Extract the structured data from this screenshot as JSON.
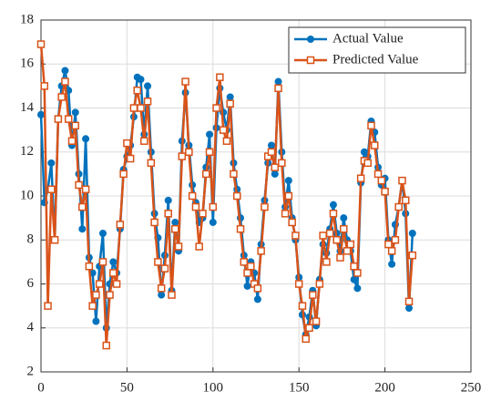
{
  "chart_data": {
    "type": "line",
    "x": [
      0,
      2,
      4,
      6,
      8,
      10,
      12,
      14,
      16,
      18,
      20,
      22,
      24,
      26,
      28,
      30,
      32,
      34,
      36,
      38,
      40,
      42,
      44,
      46,
      48,
      50,
      52,
      54,
      56,
      58,
      60,
      62,
      64,
      66,
      68,
      70,
      72,
      74,
      76,
      78,
      80,
      82,
      84,
      86,
      88,
      90,
      92,
      94,
      96,
      98,
      100,
      102,
      104,
      106,
      108,
      110,
      112,
      114,
      116,
      118,
      120,
      122,
      124,
      126,
      128,
      130,
      132,
      134,
      136,
      138,
      140,
      142,
      144,
      146,
      148,
      150,
      152,
      154,
      156,
      158,
      160,
      162,
      164,
      166,
      168,
      170,
      172,
      174,
      176,
      178,
      180,
      182,
      184,
      186,
      188,
      190,
      192,
      194,
      196,
      198,
      200,
      202,
      204,
      206,
      208,
      210,
      212,
      214,
      216
    ],
    "series": [
      {
        "name": "Actual Value",
        "color": "#0072bd",
        "marker": "circle",
        "values": [
          13.7,
          9.7,
          10.3,
          11.5,
          8.0,
          13.5,
          15.0,
          15.7,
          14.8,
          12.3,
          13.8,
          11.0,
          8.5,
          12.6,
          7.2,
          6.5,
          4.3,
          6.8,
          8.3,
          4.0,
          6.0,
          7.0,
          6.5,
          8.5,
          11.2,
          11.8,
          12.3,
          13.6,
          15.4,
          15.3,
          12.8,
          15.0,
          12.0,
          9.2,
          8.1,
          5.5,
          7.3,
          9.8,
          5.7,
          8.8,
          7.5,
          12.5,
          14.7,
          12.3,
          10.5,
          9.7,
          8.8,
          9.0,
          11.3,
          12.8,
          8.8,
          13.1,
          14.9,
          13.8,
          13.0,
          14.5,
          11.5,
          10.3,
          9.0,
          7.3,
          5.9,
          7.0,
          6.5,
          5.3,
          7.8,
          9.8,
          11.5,
          12.3,
          11.0,
          15.2,
          12.0,
          9.5,
          10.7,
          9.0,
          8.0,
          6.3,
          4.6,
          3.7,
          4.5,
          5.7,
          4.1,
          6.2,
          7.8,
          7.4,
          8.5,
          9.6,
          8.3,
          7.5,
          9.0,
          8.0,
          7.5,
          6.2,
          5.8,
          10.6,
          12.0,
          11.8,
          13.4,
          12.9,
          11.3,
          10.5,
          10.8,
          8.0,
          6.9,
          8.7,
          9.5,
          10.7,
          9.2,
          4.9,
          8.3
        ]
      },
      {
        "name": "Predicted Value",
        "color": "#d95319",
        "marker": "square",
        "values": [
          16.9,
          15.0,
          5.0,
          10.3,
          8.0,
          13.5,
          14.5,
          15.2,
          13.5,
          12.5,
          13.2,
          10.5,
          9.5,
          10.3,
          6.8,
          5.0,
          5.5,
          6.0,
          7.0,
          3.2,
          5.5,
          6.5,
          6.0,
          8.7,
          11.0,
          12.4,
          11.7,
          14.0,
          14.8,
          14.0,
          12.5,
          14.3,
          11.5,
          8.8,
          7.0,
          5.8,
          6.7,
          9.2,
          5.5,
          8.5,
          7.7,
          11.8,
          15.2,
          12.0,
          10.0,
          9.5,
          7.7,
          9.2,
          11.0,
          12.0,
          9.5,
          14.0,
          15.4,
          13.0,
          12.5,
          14.2,
          11.0,
          10.0,
          8.5,
          7.0,
          6.5,
          6.8,
          6.0,
          5.8,
          7.5,
          9.5,
          11.8,
          12.0,
          11.3,
          14.9,
          11.5,
          9.2,
          10.0,
          8.8,
          8.2,
          6.0,
          5.0,
          3.5,
          4.0,
          5.5,
          4.3,
          6.0,
          8.2,
          7.0,
          8.3,
          9.2,
          8.0,
          7.2,
          8.5,
          7.5,
          7.8,
          6.8,
          6.5,
          10.8,
          11.6,
          11.5,
          13.2,
          12.3,
          11.0,
          10.7,
          10.2,
          7.8,
          7.5,
          8.0,
          9.5,
          10.7,
          9.8,
          5.2,
          7.3
        ]
      }
    ],
    "xlim": [
      0,
      250
    ],
    "xticks": [
      0,
      50,
      100,
      150,
      200,
      250
    ],
    "ylim": [
      2,
      18
    ],
    "yticks": [
      2,
      4,
      6,
      8,
      10,
      12,
      14,
      16,
      18
    ],
    "grid": true,
    "legend": "upper right"
  }
}
